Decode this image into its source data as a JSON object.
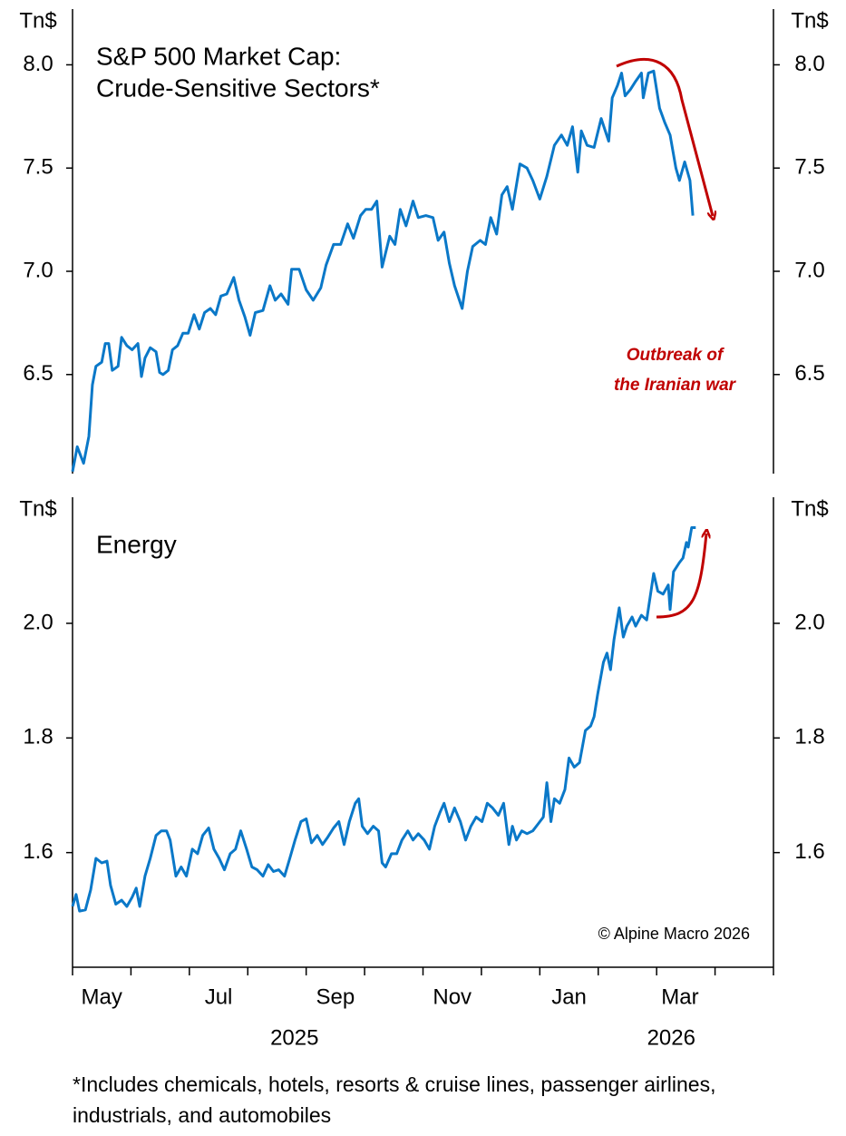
{
  "chart_data": [
    {
      "type": "line",
      "title": [
        "S&P 500 Market Cap:",
        "Crude-Sensitive Sectors*"
      ],
      "y_unit": "Tn$",
      "annotation": [
        "Outbreak of",
        "the Iranian war"
      ],
      "color": "#0a78c8",
      "xlim": [
        4,
        16
      ],
      "ylim": [
        6.02,
        8.27
      ],
      "yticks": [
        {
          "value": 8,
          "label": "8.0"
        },
        7.5,
        {
          "value": 7,
          "label": "7.0"
        },
        6.5
      ],
      "x": [
        4.0,
        4.08,
        4.19,
        4.28,
        4.34,
        4.4,
        4.5,
        4.56,
        4.62,
        4.68,
        4.78,
        4.84,
        4.93,
        5.02,
        5.12,
        5.18,
        5.24,
        5.33,
        5.43,
        5.49,
        5.55,
        5.64,
        5.71,
        5.8,
        5.89,
        5.98,
        6.08,
        6.17,
        6.26,
        6.36,
        6.45,
        6.54,
        6.64,
        6.76,
        6.85,
        6.95,
        7.04,
        7.13,
        7.26,
        7.38,
        7.47,
        7.57,
        7.69,
        7.75,
        7.88,
        8.0,
        8.12,
        8.25,
        8.34,
        8.47,
        8.59,
        8.71,
        8.81,
        8.93,
        9.02,
        9.12,
        9.21,
        9.3,
        9.43,
        9.52,
        9.61,
        9.71,
        9.83,
        9.92,
        10.05,
        10.17,
        10.26,
        10.36,
        10.45,
        10.54,
        10.67,
        10.76,
        10.85,
        10.98,
        11.07,
        11.16,
        11.26,
        11.35,
        11.44,
        11.53,
        11.66,
        11.78,
        11.88,
        12.0,
        12.12,
        12.25,
        12.37,
        12.47,
        12.56,
        12.65,
        12.71,
        12.81,
        12.93,
        13.05,
        13.18,
        13.24,
        13.33,
        13.4,
        13.46,
        13.55,
        13.64,
        13.74,
        13.77,
        13.86,
        13.95,
        14.05,
        14.14,
        14.23,
        14.33,
        14.39,
        14.48,
        14.57,
        14.62
      ],
      "values": [
        6.03,
        6.15,
        6.07,
        6.2,
        6.45,
        6.54,
        6.56,
        6.65,
        6.65,
        6.52,
        6.54,
        6.68,
        6.64,
        6.62,
        6.65,
        6.49,
        6.58,
        6.63,
        6.61,
        6.51,
        6.5,
        6.52,
        6.62,
        6.64,
        6.7,
        6.7,
        6.79,
        6.72,
        6.8,
        6.82,
        6.79,
        6.88,
        6.89,
        6.97,
        6.86,
        6.78,
        6.69,
        6.8,
        6.81,
        6.93,
        6.86,
        6.89,
        6.84,
        7.01,
        7.01,
        6.91,
        6.86,
        6.92,
        7.03,
        7.13,
        7.13,
        7.23,
        7.16,
        7.27,
        7.3,
        7.3,
        7.34,
        7.02,
        7.17,
        7.13,
        7.3,
        7.22,
        7.34,
        7.26,
        7.27,
        7.26,
        7.15,
        7.19,
        7.04,
        6.93,
        6.82,
        7.0,
        7.12,
        7.15,
        7.13,
        7.26,
        7.18,
        7.37,
        7.41,
        7.3,
        7.52,
        7.5,
        7.44,
        7.35,
        7.46,
        7.61,
        7.66,
        7.61,
        7.7,
        7.48,
        7.68,
        7.61,
        7.6,
        7.74,
        7.63,
        7.84,
        7.9,
        7.96,
        7.85,
        7.88,
        7.92,
        7.96,
        7.84,
        7.96,
        7.97,
        7.79,
        7.72,
        7.66,
        7.5,
        7.44,
        7.53,
        7.44,
        7.27
      ]
    },
    {
      "type": "line",
      "title": "Energy",
      "y_unit": "Tn$",
      "source": "© Alpine Macro 2026",
      "color": "#0a78c8",
      "xlim": [
        4,
        16
      ],
      "ylim": [
        1.4,
        2.22
      ],
      "yticks": [
        {
          "value": 2,
          "label": "2.0"
        },
        1.8,
        1.6
      ],
      "xminorticks": [
        4,
        5,
        6,
        7,
        8,
        9,
        10,
        11,
        12,
        13,
        14,
        15,
        16
      ],
      "xticks": [
        {
          "value": 4.5,
          "label": "May"
        },
        {
          "value": 6.5,
          "label": "Jul"
        },
        {
          "value": 8.5,
          "label": "Sep"
        },
        {
          "value": 10.5,
          "label": "Nov"
        },
        {
          "value": 12.5,
          "label": "Jan"
        },
        {
          "value": 14.4,
          "label": "Mar"
        }
      ],
      "x_group_labels": [
        {
          "value": 7.8,
          "label": "2025"
        },
        {
          "value": 14.25,
          "label": "2026"
        }
      ],
      "x": [
        4.0,
        4.06,
        4.12,
        4.22,
        4.31,
        4.4,
        4.5,
        4.59,
        4.65,
        4.74,
        4.84,
        4.93,
        5.02,
        5.09,
        5.15,
        5.24,
        5.33,
        5.43,
        5.52,
        5.61,
        5.67,
        5.77,
        5.86,
        5.95,
        6.05,
        6.14,
        6.23,
        6.33,
        6.42,
        6.51,
        6.6,
        6.7,
        6.79,
        6.88,
        6.98,
        7.07,
        7.16,
        7.26,
        7.35,
        7.44,
        7.53,
        7.63,
        7.72,
        7.81,
        7.91,
        8.0,
        8.09,
        8.19,
        8.28,
        8.37,
        8.47,
        8.56,
        8.65,
        8.74,
        8.84,
        8.9,
        8.96,
        9.05,
        9.15,
        9.24,
        9.3,
        9.36,
        9.46,
        9.55,
        9.64,
        9.74,
        9.83,
        9.92,
        10.02,
        10.11,
        10.2,
        10.29,
        10.36,
        10.45,
        10.54,
        10.64,
        10.73,
        10.82,
        10.91,
        11.01,
        11.1,
        11.19,
        11.29,
        11.38,
        11.47,
        11.53,
        11.6,
        11.69,
        11.78,
        11.88,
        11.97,
        12.06,
        12.12,
        12.19,
        12.25,
        12.34,
        12.43,
        12.5,
        12.59,
        12.68,
        12.78,
        12.87,
        12.93,
        12.99,
        13.09,
        13.15,
        13.21,
        13.27,
        13.36,
        13.43,
        13.49,
        13.58,
        13.64,
        13.74,
        13.83,
        13.95,
        14.02,
        14.11,
        14.2,
        14.23,
        14.29,
        14.39,
        14.45,
        14.51,
        14.54,
        14.6,
        14.67
      ],
      "values": [
        1.506,
        1.527,
        1.498,
        1.5,
        1.535,
        1.59,
        1.582,
        1.585,
        1.543,
        1.51,
        1.517,
        1.506,
        1.522,
        1.538,
        1.506,
        1.559,
        1.59,
        1.63,
        1.638,
        1.638,
        1.622,
        1.559,
        1.575,
        1.559,
        1.606,
        1.598,
        1.63,
        1.643,
        1.606,
        1.59,
        1.57,
        1.598,
        1.606,
        1.638,
        1.606,
        1.575,
        1.57,
        1.559,
        1.579,
        1.567,
        1.57,
        1.559,
        1.59,
        1.622,
        1.654,
        1.659,
        1.617,
        1.63,
        1.614,
        1.627,
        1.643,
        1.654,
        1.614,
        1.654,
        1.686,
        1.694,
        1.646,
        1.633,
        1.646,
        1.638,
        1.582,
        1.575,
        1.598,
        1.598,
        1.622,
        1.638,
        1.622,
        1.633,
        1.622,
        1.606,
        1.646,
        1.67,
        1.686,
        1.654,
        1.678,
        1.654,
        1.622,
        1.646,
        1.662,
        1.654,
        1.686,
        1.678,
        1.665,
        1.686,
        1.614,
        1.646,
        1.622,
        1.638,
        1.633,
        1.638,
        1.65,
        1.662,
        1.722,
        1.654,
        1.694,
        1.686,
        1.71,
        1.765,
        1.749,
        1.757,
        1.813,
        1.821,
        1.837,
        1.876,
        1.932,
        1.948,
        1.919,
        1.971,
        2.027,
        1.976,
        1.995,
        2.011,
        1.995,
        2.014,
        2.006,
        2.087,
        2.056,
        2.051,
        2.067,
        2.024,
        2.09,
        2.106,
        2.114,
        2.141,
        2.133,
        2.167,
        2.167
      ]
    }
  ],
  "footnote": "*Includes chemicals, hotels, resorts & cruise lines, passenger airlines, industrials, and automobiles"
}
